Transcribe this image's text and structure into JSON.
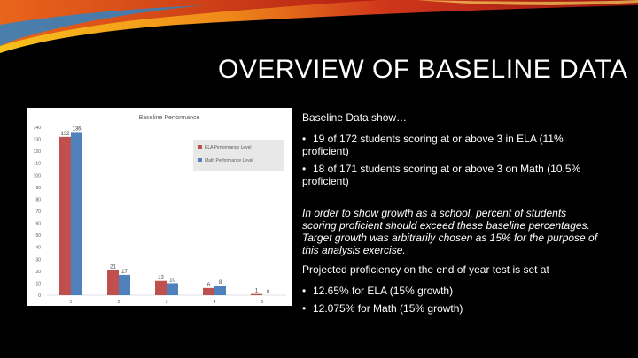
{
  "slide": {
    "title": "OVERVIEW OF BASELINE DATA",
    "colors": {
      "background": "#000000",
      "text": "#ffffff",
      "banner_red": "#c0201b",
      "banner_orange": "#f39a1c",
      "banner_blue": "#2f83c4"
    }
  },
  "text": {
    "intro": "Baseline Data show…",
    "bullets1": [
      "19 of 172 students scoring at or above 3 in ELA (11% proficient)",
      "18 of 171 students scoring at or above 3 on Math (10.5% proficient)"
    ],
    "italic": "In order to show growth as a school, percent of students scoring proficient should exceed these baseline percentages. Target growth was arbitrarily chosen as 15% for the purpose of this analysis exercise.",
    "projection": "Projected proficiency on the end of year test is set at",
    "bullets2": [
      "12.65% for ELA (15% growth)",
      "12.075% for Math (15% growth)"
    ],
    "bullet_glyph": "•"
  },
  "chart_data": {
    "type": "bar",
    "title": "Baseline Performance",
    "categories": [
      "1",
      "2",
      "3",
      "4",
      "5"
    ],
    "series": [
      {
        "name": "ELA Performance Level",
        "values": [
          132,
          21,
          12,
          6,
          1
        ],
        "color": "#c0504d"
      },
      {
        "name": "Math Performance Level",
        "values": [
          136,
          17,
          10,
          8,
          0
        ],
        "color": "#4f81bd"
      }
    ],
    "ylim": [
      0,
      140
    ],
    "yticks": [
      0,
      10,
      20,
      30,
      40,
      50,
      60,
      70,
      80,
      90,
      100,
      110,
      120,
      130,
      140
    ],
    "grid": false,
    "legend": "right",
    "xlabel": "",
    "ylabel": ""
  }
}
